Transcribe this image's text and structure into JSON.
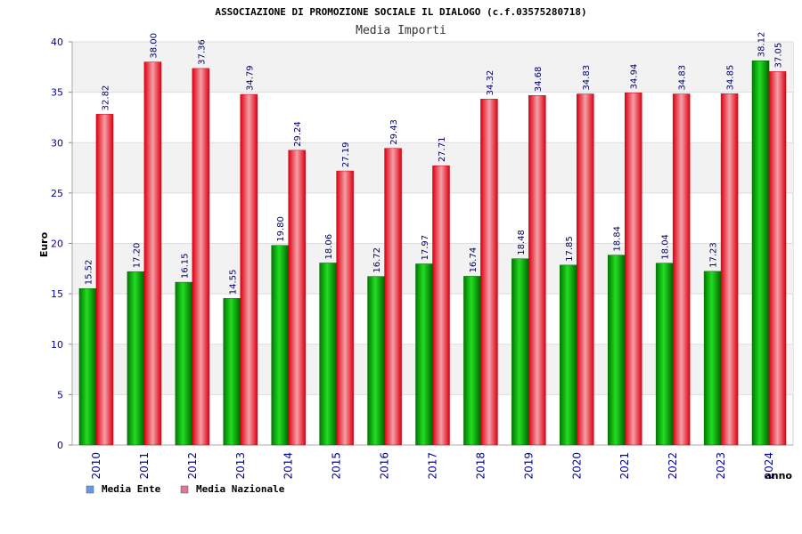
{
  "chart_data": {
    "type": "bar",
    "title": "ASSOCIAZIONE DI PROMOZIONE SOCIALE IL DIALOGO (c.f.03575280718)",
    "subtitle": "Media Importi",
    "xlabel": "anno",
    "ylabel": "Euro",
    "ylim": [
      0,
      40
    ],
    "yticks": [
      0,
      5,
      10,
      15,
      20,
      25,
      30,
      35,
      40
    ],
    "grid": true,
    "legend_position": "bottom-left",
    "categories": [
      "2010",
      "2011",
      "2012",
      "2013",
      "2014",
      "2015",
      "2016",
      "2017",
      "2018",
      "2019",
      "2020",
      "2021",
      "2022",
      "2023",
      "2024"
    ],
    "series": [
      {
        "name": "Media Ente",
        "color": "#00aa00",
        "legend_color": "#6699ee",
        "values": [
          15.52,
          17.2,
          16.15,
          14.55,
          19.8,
          18.06,
          16.72,
          17.97,
          16.74,
          18.48,
          17.85,
          18.84,
          18.04,
          17.23,
          38.12
        ],
        "labels": [
          "15.52",
          "17.20",
          "16.15",
          "14.55",
          "19.80",
          "18.06",
          "16.72",
          "17.97",
          "16.74",
          "18.48",
          "17.85",
          "18.84",
          "18.04",
          "17.23",
          "38.12"
        ]
      },
      {
        "name": "Media Nazionale",
        "color": "#ee1122",
        "legend_color": "#dd7799",
        "values": [
          32.82,
          38.0,
          37.36,
          34.79,
          29.24,
          27.19,
          29.43,
          27.71,
          34.32,
          34.68,
          34.83,
          34.94,
          34.83,
          34.85,
          37.05
        ],
        "labels": [
          "32.82",
          "38.00",
          "37.36",
          "34.79",
          "29.24",
          "27.19",
          "29.43",
          "27.71",
          "34.32",
          "34.68",
          "34.83",
          "34.94",
          "34.83",
          "34.85",
          "37.05"
        ]
      }
    ]
  }
}
